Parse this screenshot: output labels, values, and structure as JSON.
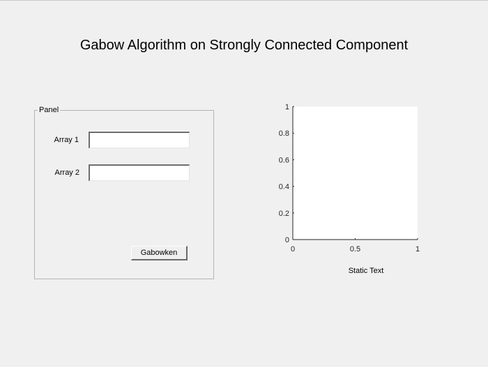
{
  "title": "Gabow Algorithm on Strongly Connected Component",
  "panel": {
    "title": "Panel",
    "array1": {
      "label": "Array 1",
      "value": ""
    },
    "array2": {
      "label": "Array 2",
      "value": ""
    },
    "button_label": "Gabowken"
  },
  "axes": {
    "x_ticks": [
      "0",
      "0.5",
      "1"
    ],
    "y_ticks": [
      "0",
      "0.2",
      "0.4",
      "0.6",
      "0.8",
      "1"
    ],
    "xlim": [
      0,
      1
    ],
    "ylim": [
      0,
      1
    ]
  },
  "static_text": "Static Text"
}
